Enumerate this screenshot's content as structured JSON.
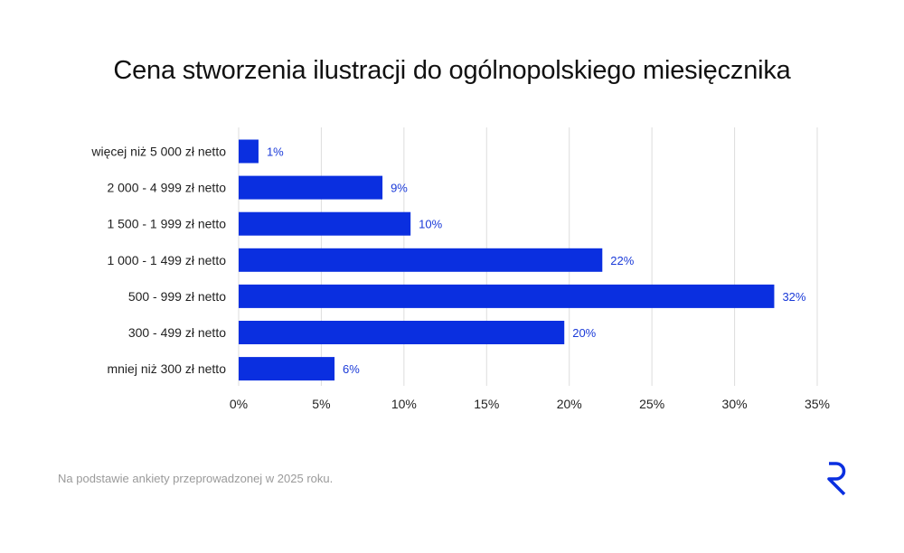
{
  "title": "Cena stworzenia ilustracji do ogólnopolskiego miesięcznika",
  "footnote": "Na podstawie ankiety przeprowadzonej w 2025 roku.",
  "logo_icon": "brand-r-logo-icon",
  "colors": {
    "bar": "#0a2fe0",
    "data_label": "#1a3ad8",
    "grid": "#dddddd",
    "text": "#222222",
    "logo": "#0a2fe0"
  },
  "chart_data": {
    "type": "bar",
    "orientation": "horizontal",
    "categories": [
      "więcej niż 5 000 zł netto",
      "2 000 - 4 999 zł netto",
      "1 500 - 1 999 zł netto",
      "1 000 - 1 499 zł netto",
      "500 - 999 zł netto",
      "300 - 499 zł netto",
      "mniej niż 300 zł netto"
    ],
    "values": [
      1.2,
      8.7,
      10.4,
      22.0,
      32.4,
      19.7,
      5.8
    ],
    "data_labels": [
      "1%",
      "9%",
      "10%",
      "22%",
      "32%",
      "20%",
      "6%"
    ],
    "xlim": [
      0,
      35
    ],
    "xticks": [
      0,
      5,
      10,
      15,
      20,
      25,
      30,
      35
    ],
    "xtick_labels": [
      "0%",
      "5%",
      "10%",
      "15%",
      "20%",
      "25%",
      "30%",
      "35%"
    ],
    "grid": true,
    "legend": "none"
  }
}
